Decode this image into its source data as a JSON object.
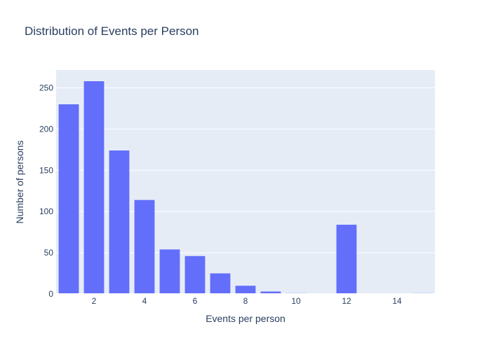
{
  "chart_data": {
    "type": "bar",
    "title": "Distribution of Events per Person",
    "xlabel": "Events per person",
    "ylabel": "Number of persons",
    "x": [
      1,
      2,
      3,
      4,
      5,
      6,
      7,
      8,
      9,
      10,
      11,
      12,
      13,
      14,
      15
    ],
    "values": [
      230,
      258,
      174,
      114,
      54,
      46,
      25,
      10,
      3,
      1,
      0,
      84,
      0,
      0,
      1
    ],
    "xlim": [
      0.5,
      15.5
    ],
    "ylim": [
      0,
      271.6
    ],
    "xticks": [
      2,
      4,
      6,
      8,
      10,
      12,
      14
    ],
    "yticks": [
      0,
      50,
      100,
      150,
      200,
      250
    ],
    "grid": true,
    "legend": "none",
    "colors": {
      "bar": "#636efa",
      "plot_background": "#e5ecf6",
      "grid": "#ffffff",
      "text": "#2a3f5f"
    }
  }
}
